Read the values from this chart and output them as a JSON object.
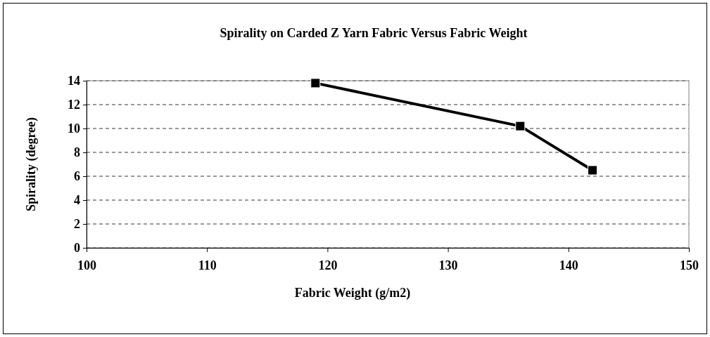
{
  "chart_data": {
    "type": "line",
    "title": "Spirality on Carded Z Yarn Fabric Versus Fabric Weight",
    "xlabel": "Fabric Weight (g/m2)",
    "ylabel": "Spirality (degree)",
    "x": [
      119,
      136,
      142
    ],
    "series": [
      {
        "color": "#000000",
        "values": [
          13.8,
          10.2,
          6.5
        ]
      }
    ],
    "xlim": [
      100,
      150
    ],
    "xticks": [
      100,
      110,
      120,
      130,
      140,
      150
    ],
    "ylim": [
      0,
      14
    ],
    "yticks": [
      0,
      2,
      4,
      6,
      8,
      10,
      12,
      14
    ],
    "grid": "y",
    "marker": "square",
    "line_style": "solid"
  }
}
